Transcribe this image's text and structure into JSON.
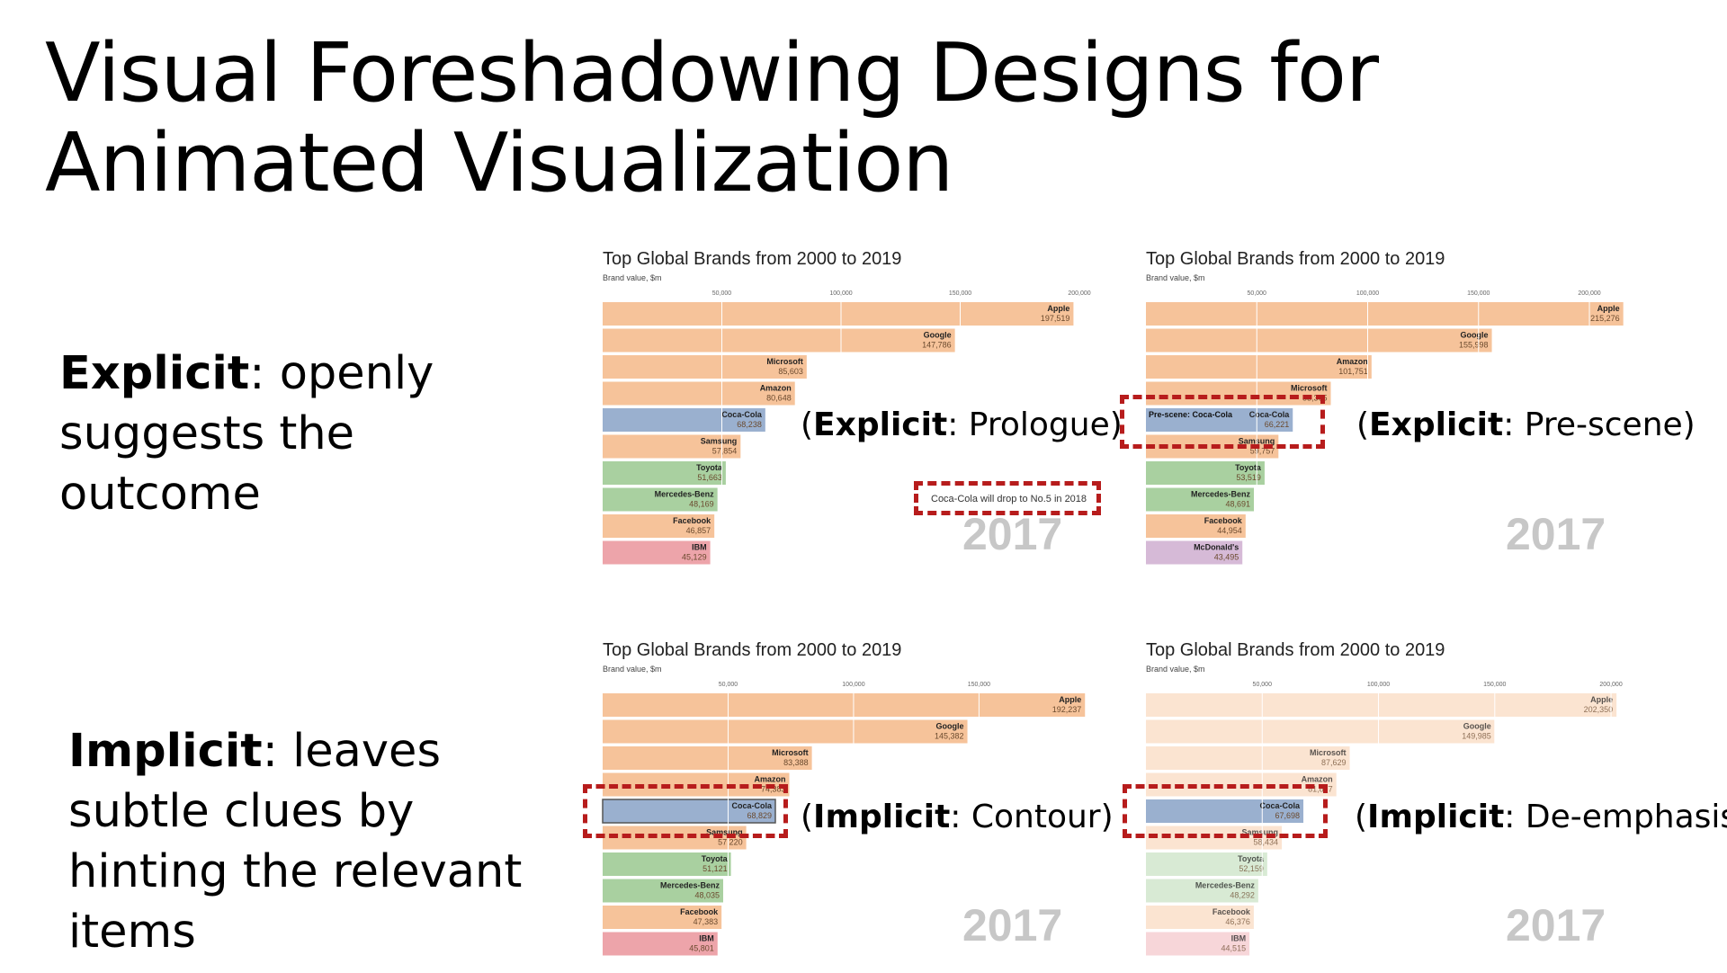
{
  "slide": {
    "title_line1": "Visual Foreshadowing Designs for",
    "title_line2": "Animated Visualization",
    "explicit_term": "Explicit",
    "explicit_rest": ": openly suggests the outcome",
    "implicit_term": "Implicit",
    "implicit_rest": ": leaves subtle clues by hinting the relevant items"
  },
  "annotations": {
    "prologue_term": "Explicit",
    "prologue_rest": ": Prologue)",
    "prescene_term": "Explicit",
    "prescene_rest": ": Pre-scene)",
    "contour_term": "Implicit",
    "contour_rest": ": Contour)",
    "deemph_term": "Implicit",
    "deemph_rest": ": De-emphasis)",
    "open_paren": "(",
    "prologue_note": "Coca-Cola will drop to No.5 in 2018"
  },
  "colors": {
    "orange": "#f6c39a",
    "blue": "#9ab0cf",
    "green": "#a9d0a0",
    "red": "#eda4aa",
    "purple": "#d6bad7",
    "dashed_box": "#b71c1c",
    "year": "#c7c7c7"
  },
  "chart_data": [
    {
      "type": "bar",
      "title": "Top Global Brands from 2000 to 2019",
      "subtitle": "Brand value, $m",
      "year": "2017",
      "xlim": [
        0,
        200000
      ],
      "ticks": [
        "50,000",
        "100,000",
        "150,000",
        "200,000"
      ],
      "tick_values": [
        50000,
        100000,
        150000,
        200000
      ],
      "style": "normal",
      "bars": [
        {
          "name": "Apple",
          "value": 197519,
          "label": "197,519",
          "color": "orange"
        },
        {
          "name": "Google",
          "value": 147786,
          "label": "147,786",
          "color": "orange"
        },
        {
          "name": "Microsoft",
          "value": 85603,
          "label": "85,603",
          "color": "orange"
        },
        {
          "name": "Amazon",
          "value": 80648,
          "label": "80,648",
          "color": "orange"
        },
        {
          "name": "Coca-Cola",
          "value": 68238,
          "label": "68,238",
          "color": "blue"
        },
        {
          "name": "Samsung",
          "value": 57854,
          "label": "57,854",
          "color": "orange"
        },
        {
          "name": "Toyota",
          "value": 51663,
          "label": "51,663",
          "color": "green"
        },
        {
          "name": "Mercedes-Benz",
          "value": 48169,
          "label": "48,169",
          "color": "green"
        },
        {
          "name": "Facebook",
          "value": 46857,
          "label": "46,857",
          "color": "orange"
        },
        {
          "name": "IBM",
          "value": 45129,
          "label": "45,129",
          "color": "red"
        }
      ]
    },
    {
      "type": "bar",
      "title": "Top Global Brands from 2000 to 2019",
      "subtitle": "Brand value, $m",
      "year": "2017",
      "xlim": [
        0,
        215000
      ],
      "ticks": [
        "50,000",
        "100,000",
        "150,000",
        "200,000"
      ],
      "tick_values": [
        50000,
        100000,
        150000,
        200000
      ],
      "style": "prescene",
      "bars": [
        {
          "name": "Apple",
          "value": 215276,
          "label": "215,276",
          "color": "orange"
        },
        {
          "name": "Google",
          "value": 155998,
          "label": "155,998",
          "color": "orange"
        },
        {
          "name": "Amazon",
          "value": 101751,
          "label": "101,751",
          "color": "orange"
        },
        {
          "name": "Microsoft",
          "value": 83365,
          "label": "83,365",
          "color": "orange"
        },
        {
          "name": "Coca-Cola",
          "value": 66221,
          "label": "66,221",
          "color": "blue",
          "prescene_label": "Pre-scene: Coca-Cola"
        },
        {
          "name": "Samsung",
          "value": 59757,
          "label": "59,757",
          "color": "orange"
        },
        {
          "name": "Toyota",
          "value": 53519,
          "label": "53,519",
          "color": "green"
        },
        {
          "name": "Mercedes-Benz",
          "value": 48691,
          "label": "48,691",
          "color": "green"
        },
        {
          "name": "Facebook",
          "value": 44954,
          "label": "44,954",
          "color": "orange"
        },
        {
          "name": "McDonald's",
          "value": 43495,
          "label": "43,495",
          "color": "purple"
        }
      ]
    },
    {
      "type": "bar",
      "title": "Top Global Brands from 2000 to 2019",
      "subtitle": "Brand value, $m",
      "year": "2017",
      "xlim": [
        0,
        190000
      ],
      "ticks": [
        "50,000",
        "100,000",
        "150,000"
      ],
      "tick_values": [
        50000,
        100000,
        150000
      ],
      "style": "contour",
      "bars": [
        {
          "name": "Apple",
          "value": 192237,
          "label": "192,237",
          "color": "orange"
        },
        {
          "name": "Google",
          "value": 145382,
          "label": "145,382",
          "color": "orange"
        },
        {
          "name": "Microsoft",
          "value": 83388,
          "label": "83,388",
          "color": "orange"
        },
        {
          "name": "Amazon",
          "value": 74383,
          "label": "74,383",
          "color": "orange"
        },
        {
          "name": "Coca-Cola",
          "value": 68829,
          "label": "68,829",
          "color": "blue",
          "contour": true
        },
        {
          "name": "Samsung",
          "value": 57220,
          "label": "57,220",
          "color": "orange"
        },
        {
          "name": "Toyota",
          "value": 51121,
          "label": "51,121",
          "color": "green"
        },
        {
          "name": "Mercedes-Benz",
          "value": 48035,
          "label": "48,035",
          "color": "green"
        },
        {
          "name": "Facebook",
          "value": 47383,
          "label": "47,383",
          "color": "orange"
        },
        {
          "name": "IBM",
          "value": 45801,
          "label": "45,801",
          "color": "red"
        }
      ]
    },
    {
      "type": "bar",
      "title": "Top Global Brands from 2000 to 2019",
      "subtitle": "Brand value, $m",
      "year": "2017",
      "xlim": [
        0,
        205000
      ],
      "ticks": [
        "50,000",
        "100,000",
        "150,000",
        "200,000"
      ],
      "tick_values": [
        50000,
        100000,
        150000,
        200000
      ],
      "style": "deemphasis",
      "bars": [
        {
          "name": "Apple",
          "value": 202350,
          "label": "202,350",
          "color": "orange"
        },
        {
          "name": "Google",
          "value": 149985,
          "label": "149,985",
          "color": "orange"
        },
        {
          "name": "Microsoft",
          "value": 87629,
          "label": "87,629",
          "color": "orange"
        },
        {
          "name": "Amazon",
          "value": 81877,
          "label": "81,877",
          "color": "orange"
        },
        {
          "name": "Coca-Cola",
          "value": 67698,
          "label": "67,698",
          "color": "blue",
          "emphasized": true
        },
        {
          "name": "Samsung",
          "value": 58434,
          "label": "58,434",
          "color": "orange"
        },
        {
          "name": "Toyota",
          "value": 52159,
          "label": "52,159",
          "color": "green"
        },
        {
          "name": "Mercedes-Benz",
          "value": 48292,
          "label": "48,292",
          "color": "green"
        },
        {
          "name": "Facebook",
          "value": 46376,
          "label": "46,376",
          "color": "orange"
        },
        {
          "name": "IBM",
          "value": 44515,
          "label": "44,515",
          "color": "red"
        }
      ]
    }
  ]
}
